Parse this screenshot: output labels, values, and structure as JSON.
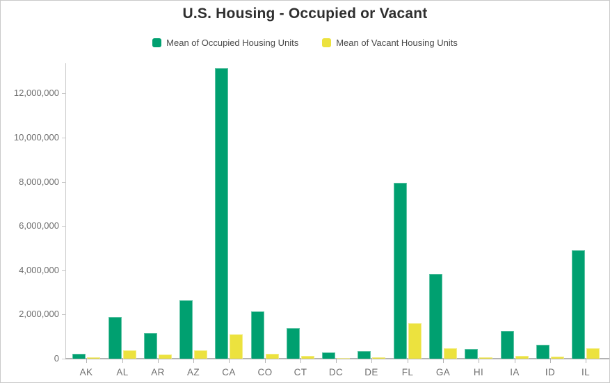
{
  "title": "U.S. Housing - Occupied or Vacant",
  "chart_data": {
    "type": "bar",
    "title": "U.S. Housing - Occupied or Vacant",
    "categories": [
      "AK",
      "AL",
      "AR",
      "AZ",
      "CA",
      "CO",
      "CT",
      "DC",
      "DE",
      "FL",
      "GA",
      "HI",
      "IA",
      "ID",
      "IL"
    ],
    "series": [
      {
        "name": "Mean of Occupied Housing Units",
        "color": "#00a070",
        "values": [
          230000,
          1880000,
          1160000,
          2640000,
          13130000,
          2130000,
          1370000,
          270000,
          350000,
          7950000,
          3830000,
          450000,
          1270000,
          640000,
          4890000
        ]
      },
      {
        "name": "Mean of Vacant Housing Units",
        "color": "#ece23e",
        "values": [
          50000,
          370000,
          200000,
          380000,
          1100000,
          220000,
          140000,
          30000,
          50000,
          1600000,
          470000,
          60000,
          140000,
          80000,
          470000
        ]
      }
    ],
    "xlabel": "",
    "ylabel": "",
    "ylim": [
      0,
      13360000
    ],
    "yticks": [
      0,
      2000000,
      4000000,
      6000000,
      8000000,
      10000000,
      12000000
    ],
    "grid": false,
    "legend_position": "top"
  }
}
